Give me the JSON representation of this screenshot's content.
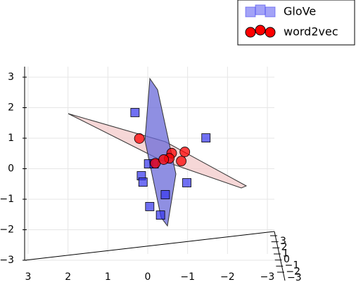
{
  "chart_data": {
    "type": "scatter3d",
    "xlim": [
      3,
      -3
    ],
    "xticks": [
      3,
      2,
      1,
      0,
      {
        "value": -1,
        "label": "−1"
      },
      {
        "value": -2,
        "label": "−2"
      },
      {
        "value": -3,
        "label": "−3"
      }
    ],
    "zlim": [
      -3,
      3
    ],
    "zticks": [
      3,
      2,
      1,
      0,
      {
        "value": -1,
        "label": "−1"
      },
      {
        "value": -2,
        "label": "−2"
      },
      {
        "value": -3,
        "label": "−3"
      }
    ],
    "ylim": [
      -3,
      3
    ],
    "yticks": [
      3,
      2,
      1,
      0,
      {
        "value": -1,
        "label": "−1"
      },
      {
        "value": -2,
        "label": "−2"
      },
      {
        "value": -3,
        "label": "−3"
      }
    ],
    "grid": true,
    "legend": "upper right",
    "series": [
      {
        "name": "GloVe",
        "color": "#3333ee",
        "marker": "square",
        "x": [
          0.32,
          -1.46,
          -0.02,
          0.16,
          0.12,
          -0.44,
          -0.98,
          -0.05,
          -0.32,
          -0.16
        ],
        "z": [
          1.84,
          1.01,
          0.16,
          -0.23,
          -0.44,
          -0.85,
          -0.46,
          -1.24,
          -1.52,
          0.16
        ]
      },
      {
        "name": "word2vec",
        "color": "#ff0000",
        "marker": "circle",
        "x": [
          0.21,
          -0.6,
          -0.93,
          -0.54,
          -0.84,
          -0.19,
          -0.4
        ],
        "z": [
          0.99,
          0.51,
          0.55,
          0.34,
          0.25,
          0.18,
          0.3
        ]
      }
    ]
  }
}
